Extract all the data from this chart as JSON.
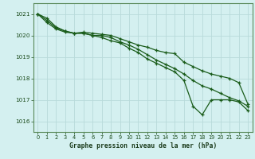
{
  "title": "Graphe pression niveau de la mer (hPa)",
  "background_color": "#d4f0f0",
  "grid_color": "#b8dada",
  "line_color": "#1a5c1a",
  "xlim": [
    -0.5,
    23.5
  ],
  "ylim": [
    1015.5,
    1021.5
  ],
  "yticks": [
    1016,
    1017,
    1018,
    1019,
    1020,
    1021
  ],
  "xticks": [
    0,
    1,
    2,
    3,
    4,
    5,
    6,
    7,
    8,
    9,
    10,
    11,
    12,
    13,
    14,
    15,
    16,
    17,
    18,
    19,
    20,
    21,
    22,
    23
  ],
  "series": [
    [
      1021.0,
      1020.8,
      1020.4,
      1020.2,
      1020.1,
      1020.1,
      1020.0,
      1020.0,
      1019.9,
      1019.7,
      1019.55,
      1019.35,
      1019.1,
      1018.85,
      1018.65,
      1018.45,
      1018.2,
      1017.9,
      1017.65,
      1017.5,
      1017.3,
      1017.1,
      1016.95,
      1016.7
    ],
    [
      1021.0,
      1020.7,
      1020.35,
      1020.2,
      1020.1,
      1020.15,
      1020.1,
      1020.05,
      1020.0,
      1019.85,
      1019.7,
      1019.55,
      1019.45,
      1019.3,
      1019.2,
      1019.15,
      1018.75,
      1018.55,
      1018.35,
      1018.2,
      1018.1,
      1018.0,
      1017.8,
      1016.8
    ],
    [
      1021.0,
      1020.6,
      1020.3,
      1020.15,
      1020.1,
      1020.1,
      1020.0,
      1019.9,
      1019.75,
      1019.65,
      1019.4,
      1019.2,
      1018.9,
      1018.7,
      1018.5,
      1018.3,
      1017.9,
      1016.7,
      1016.3,
      1017.0,
      1017.0,
      1017.0,
      1016.9,
      1016.5
    ]
  ]
}
